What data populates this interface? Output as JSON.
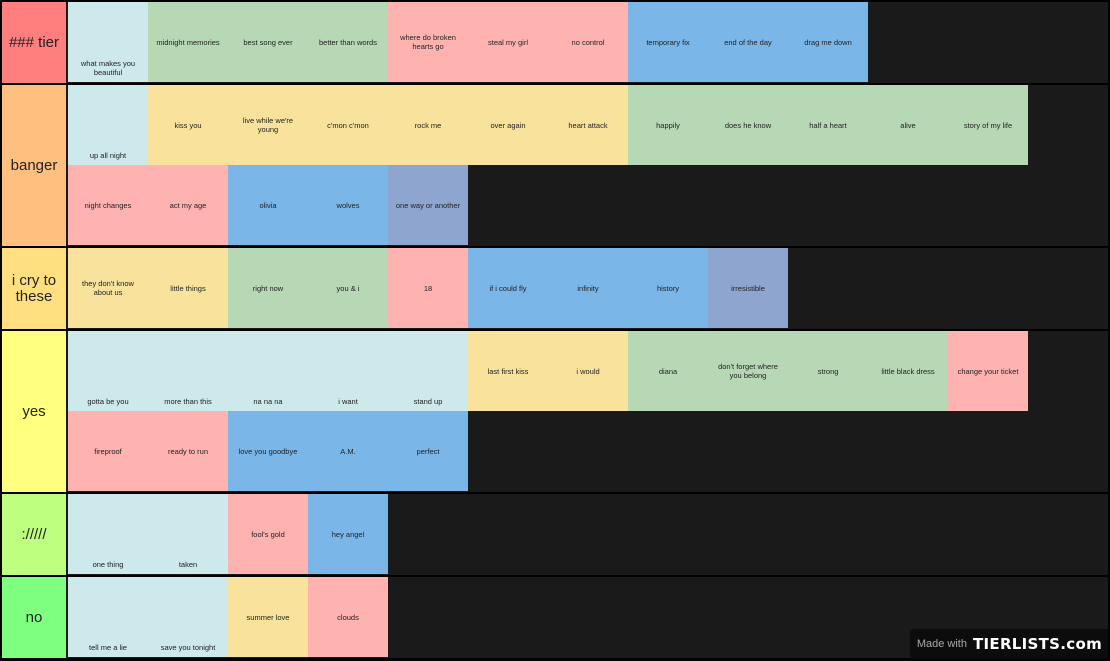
{
  "tiers": [
    {
      "label": "### tier",
      "color": "#ff7f7f",
      "items": [
        {
          "text": "what makes you beautiful",
          "color": "teal",
          "bottom": true
        },
        {
          "text": "midnight memories",
          "color": "green"
        },
        {
          "text": "best song ever",
          "color": "green"
        },
        {
          "text": "better than words",
          "color": "green"
        },
        {
          "text": "where do broken hearts go",
          "color": "pink"
        },
        {
          "text": "steal my girl",
          "color": "pink"
        },
        {
          "text": "no control",
          "color": "pink"
        },
        {
          "text": "temporary fix",
          "color": "blue"
        },
        {
          "text": "end of the day",
          "color": "blue"
        },
        {
          "text": "drag me down",
          "color": "blue"
        }
      ]
    },
    {
      "label": "banger",
      "color": "#ffbf7f",
      "items": [
        {
          "text": "up all night",
          "color": "teal",
          "bottom": true
        },
        {
          "text": "kiss you",
          "color": "yellow"
        },
        {
          "text": "live while we're young",
          "color": "yellow"
        },
        {
          "text": "c'mon c'mon",
          "color": "yellow"
        },
        {
          "text": "rock me",
          "color": "yellow"
        },
        {
          "text": "over again",
          "color": "yellow"
        },
        {
          "text": "heart attack",
          "color": "yellow"
        },
        {
          "text": "happily",
          "color": "green"
        },
        {
          "text": "does he know",
          "color": "green"
        },
        {
          "text": "half a heart",
          "color": "green"
        },
        {
          "text": "alive",
          "color": "green"
        },
        {
          "text": "story of my life",
          "color": "green"
        },
        {
          "text": "night changes",
          "color": "pink"
        },
        {
          "text": "act my age",
          "color": "pink"
        },
        {
          "text": "olivia",
          "color": "blue"
        },
        {
          "text": "wolves",
          "color": "blue"
        },
        {
          "text": "one way or another",
          "color": "slate"
        }
      ]
    },
    {
      "label": "i cry to these",
      "color": "#ffdf7f",
      "items": [
        {
          "text": "they don't know about us",
          "color": "yellow"
        },
        {
          "text": "little things",
          "color": "yellow"
        },
        {
          "text": "right now",
          "color": "green"
        },
        {
          "text": "you & i",
          "color": "green"
        },
        {
          "text": "18",
          "color": "pink"
        },
        {
          "text": "if i could fly",
          "color": "blue"
        },
        {
          "text": "infinity",
          "color": "blue"
        },
        {
          "text": "history",
          "color": "blue"
        },
        {
          "text": "irresistible",
          "color": "slate"
        }
      ]
    },
    {
      "label": "yes",
      "color": "#ffff7f",
      "items": [
        {
          "text": "gotta be you",
          "color": "teal",
          "bottom": true
        },
        {
          "text": "more than this",
          "color": "teal",
          "bottom": true
        },
        {
          "text": "na na na",
          "color": "teal",
          "bottom": true
        },
        {
          "text": "i want",
          "color": "teal",
          "bottom": true
        },
        {
          "text": "stand up",
          "color": "teal",
          "bottom": true
        },
        {
          "text": "last first kiss",
          "color": "yellow"
        },
        {
          "text": "i would",
          "color": "yellow"
        },
        {
          "text": "diana",
          "color": "green"
        },
        {
          "text": "don't forget where you belong",
          "color": "green"
        },
        {
          "text": "strong",
          "color": "green"
        },
        {
          "text": "little black dress",
          "color": "green"
        },
        {
          "text": "change your ticket",
          "color": "pink"
        },
        {
          "text": "fireproof",
          "color": "pink"
        },
        {
          "text": "ready to run",
          "color": "pink"
        },
        {
          "text": "love you goodbye",
          "color": "blue"
        },
        {
          "text": "A.M.",
          "color": "blue"
        },
        {
          "text": "perfect",
          "color": "blue"
        }
      ]
    },
    {
      "label": "://///",
      "color": "#bfff7f",
      "items": [
        {
          "text": "one thing",
          "color": "teal",
          "bottom": true
        },
        {
          "text": "taken",
          "color": "teal",
          "bottom": true
        },
        {
          "text": "fool's gold",
          "color": "pink"
        },
        {
          "text": "hey angel",
          "color": "blue"
        }
      ]
    },
    {
      "label": "no",
      "color": "#7fff7f",
      "items": [
        {
          "text": "tell me a lie",
          "color": "teal",
          "bottom": true
        },
        {
          "text": "save you tonight",
          "color": "teal",
          "bottom": true
        },
        {
          "text": "summer love",
          "color": "yellow"
        },
        {
          "text": "clouds",
          "color": "pink"
        }
      ]
    }
  ],
  "watermark": {
    "made_with": "Made with",
    "brand": "TIERLISTS.com"
  }
}
